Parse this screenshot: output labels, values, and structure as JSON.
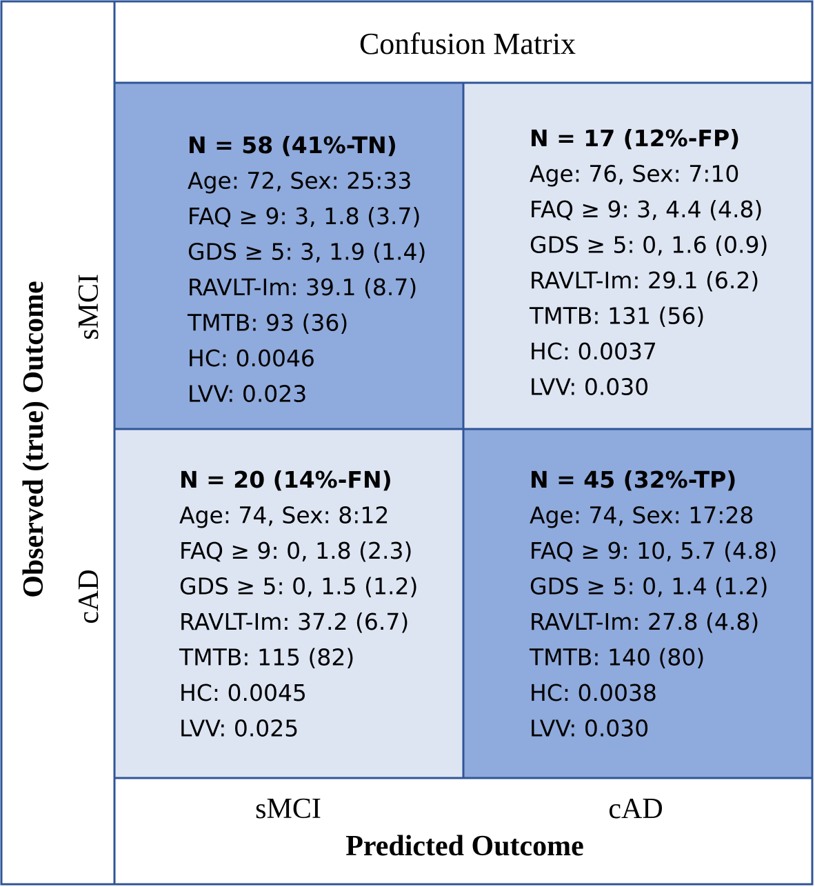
{
  "title": "Confusion Matrix",
  "y_axis_label": "Observed (true) Outcome",
  "x_axis_label": "Predicted Outcome",
  "row_labels": [
    "sMCI",
    "cAD"
  ],
  "column_labels": [
    "sMCI",
    "cAD"
  ],
  "cells": [
    {
      "lines": [
        "N =  58 (41%-TN)",
        "Age: 72, Sex: 25:33",
        "FAQ ≥ 9: 3, 1.8 (3.7)",
        "GDS ≥ 5: 3, 1.9 (1.4)",
        "RAVLT-Im: 39.1 (8.7)",
        "TMTB: 93 (36)",
        "HC: 0.0046",
        "LVV: 0.023"
      ]
    },
    {
      "lines": [
        "N =  17 (12%-FP)",
        "Age: 76, Sex: 7:10",
        "FAQ ≥ 9: 3, 4.4 (4.8)",
        "GDS ≥ 5: 0, 1.6 (0.9)",
        "RAVLT-Im: 29.1 (6.2)",
        "TMTB: 131 (56)",
        "HC: 0.0037",
        "LVV: 0.030"
      ]
    },
    {
      "lines": [
        "N =  20 (14%-FN)",
        "Age: 74, Sex: 8:12",
        "FAQ ≥ 9: 0, 1.8 (2.3)",
        "GDS ≥ 5: 0, 1.5 (1.2)",
        "RAVLT-Im: 37.2 (6.7)",
        "TMTB: 115 (82)",
        "HC: 0.0045",
        "LVV: 0.025"
      ]
    },
    {
      "lines": [
        "N = 45 (32%-TP)",
        "Age: 74, Sex: 17:28",
        "FAQ ≥ 9: 10, 5.7 (4.8)",
        "GDS ≥ 5: 0, 1.4 (1.2)",
        "RAVLT-Im: 27.8 (4.8)",
        "TMTB: 140 (80)",
        "HC: 0.0038",
        "LVV: 0.030"
      ]
    }
  ]
}
